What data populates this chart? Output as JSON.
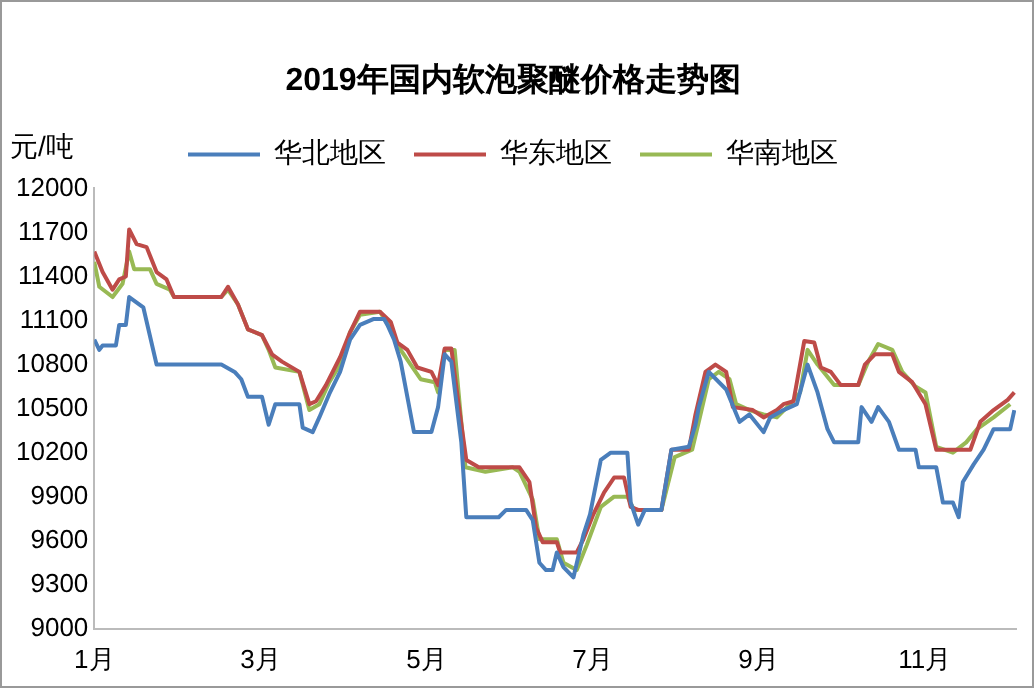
{
  "chart_data": {
    "type": "line",
    "title": "2019年国内软泡聚醚价格走势图",
    "ylabel": "元/吨",
    "xlim": [
      1,
      12.1
    ],
    "xticks": [
      {
        "value": 1,
        "label": "1月"
      },
      {
        "value": 3,
        "label": "3月"
      },
      {
        "value": 5,
        "label": "5月"
      },
      {
        "value": 7,
        "label": "7月"
      },
      {
        "value": 9,
        "label": "9月"
      },
      {
        "value": 11,
        "label": "11月"
      }
    ],
    "ylim": [
      9000,
      12000
    ],
    "yticks": [
      9000,
      9300,
      9600,
      9900,
      10200,
      10500,
      10800,
      11100,
      11400,
      11700,
      12000
    ],
    "grid": false,
    "legend": "top",
    "marker": "none",
    "line_style": "solid",
    "series": [
      {
        "name": "华北地区",
        "color": "#4a7ebb",
        "x": [
          1,
          1.06,
          1.1,
          1.26,
          1.3,
          1.38,
          1.42,
          1.59,
          1.75,
          2.53,
          2.69,
          2.77,
          2.85,
          3.02,
          3.1,
          3.18,
          3.47,
          3.51,
          3.63,
          3.71,
          3.83,
          3.96,
          4.08,
          4.2,
          4.36,
          4.49,
          4.53,
          4.61,
          4.69,
          4.77,
          4.85,
          5.06,
          5.14,
          5.22,
          5.3,
          5.42,
          5.48,
          5.87,
          5.96,
          6.2,
          6.28,
          6.36,
          6.44,
          6.52,
          6.57,
          6.65,
          6.77,
          6.89,
          6.97,
          7.1,
          7.22,
          7.42,
          7.46,
          7.55,
          7.63,
          7.83,
          7.95,
          8.16,
          8.24,
          8.28,
          8.4,
          8.61,
          8.77,
          8.89,
          9.06,
          9.14,
          9.3,
          9.46,
          9.59,
          9.71,
          9.83,
          9.91,
          10.2,
          10.24,
          10.36,
          10.44,
          10.57,
          10.69,
          10.89,
          10.93,
          11.14,
          11.22,
          11.34,
          11.41,
          11.46,
          11.59,
          11.71,
          11.83,
          12.03,
          12.08
        ],
        "values": [
          10970,
          10900,
          10930,
          10930,
          11070,
          11070,
          11260,
          11190,
          10800,
          10800,
          10750,
          10700,
          10580,
          10580,
          10390,
          10530,
          10530,
          10370,
          10340,
          10440,
          10600,
          10750,
          10970,
          11070,
          11110,
          11110,
          11070,
          10970,
          10820,
          10580,
          10340,
          10340,
          10510,
          10870,
          10820,
          10270,
          9760,
          9760,
          9810,
          9810,
          9740,
          9450,
          9400,
          9400,
          9520,
          9420,
          9350,
          9640,
          9780,
          10150,
          10200,
          10200,
          9860,
          9710,
          9810,
          9810,
          10220,
          10240,
          10390,
          10510,
          10750,
          10630,
          10410,
          10460,
          10340,
          10440,
          10490,
          10530,
          10800,
          10610,
          10360,
          10270,
          10270,
          10510,
          10410,
          10510,
          10410,
          10220,
          10220,
          10100,
          10100,
          9860,
          9860,
          9760,
          10000,
          10120,
          10220,
          10360,
          10360,
          10490
        ]
      },
      {
        "name": "华东地区",
        "color": "#be4b48",
        "x": [
          1,
          1.1,
          1.22,
          1.3,
          1.38,
          1.42,
          1.51,
          1.63,
          1.75,
          1.87,
          1.96,
          2.53,
          2.61,
          2.73,
          2.85,
          3.02,
          3.14,
          3.26,
          3.47,
          3.59,
          3.67,
          3.79,
          3.96,
          4.08,
          4.2,
          4.44,
          4.57,
          4.65,
          4.77,
          4.89,
          5.06,
          5.14,
          5.22,
          5.3,
          5.38,
          5.48,
          5.63,
          6.12,
          6.24,
          6.32,
          6.4,
          6.57,
          6.61,
          6.81,
          6.89,
          7.01,
          7.14,
          7.26,
          7.38,
          7.46,
          7.55,
          7.83,
          7.95,
          8.16,
          8.24,
          8.36,
          8.48,
          8.61,
          8.69,
          8.93,
          9.06,
          9.22,
          9.3,
          9.42,
          9.55,
          9.67,
          9.75,
          9.87,
          9.99,
          10.2,
          10.28,
          10.4,
          10.61,
          10.69,
          10.85,
          11.01,
          11.14,
          11.55,
          11.67,
          11.83,
          12.0,
          12.08
        ],
        "values": [
          11570,
          11430,
          11310,
          11380,
          11400,
          11720,
          11620,
          11600,
          11430,
          11380,
          11260,
          11260,
          11330,
          11210,
          11040,
          11000,
          10870,
          10820,
          10750,
          10530,
          10550,
          10660,
          10850,
          11020,
          11160,
          11160,
          11090,
          10950,
          10900,
          10780,
          10750,
          10660,
          10910,
          10910,
          10560,
          10150,
          10100,
          10100,
          10000,
          9690,
          9590,
          9590,
          9520,
          9520,
          9610,
          9780,
          9930,
          10030,
          10030,
          9830,
          9810,
          9810,
          10220,
          10220,
          10460,
          10750,
          10800,
          10750,
          10510,
          10490,
          10440,
          10490,
          10530,
          10550,
          10960,
          10950,
          10780,
          10750,
          10660,
          10660,
          10800,
          10870,
          10870,
          10750,
          10680,
          10530,
          10220,
          10220,
          10410,
          10490,
          10560,
          10610
        ]
      },
      {
        "name": "华南地区",
        "color": "#98b954",
        "x": [
          1,
          1.06,
          1.22,
          1.34,
          1.42,
          1.48,
          1.67,
          1.75,
          1.91,
          1.96,
          2.53,
          2.61,
          2.73,
          2.85,
          3.02,
          3.1,
          3.18,
          3.47,
          3.59,
          3.71,
          3.83,
          3.96,
          4.08,
          4.2,
          4.44,
          4.57,
          4.69,
          4.81,
          4.93,
          5.1,
          5.14,
          5.22,
          5.34,
          5.47,
          5.71,
          6.04,
          6.12,
          6.28,
          6.36,
          6.57,
          6.65,
          6.81,
          6.93,
          7.1,
          7.26,
          7.42,
          7.5,
          7.83,
          7.99,
          8.2,
          8.28,
          8.4,
          8.52,
          8.65,
          8.73,
          8.89,
          9.06,
          9.22,
          9.38,
          9.5,
          9.59,
          9.71,
          9.91,
          10.2,
          10.32,
          10.44,
          10.61,
          10.73,
          10.89,
          11.01,
          11.14,
          11.34,
          11.5,
          11.63,
          11.83,
          12.03
        ],
        "values": [
          11500,
          11330,
          11260,
          11350,
          11570,
          11450,
          11450,
          11350,
          11310,
          11260,
          11260,
          11310,
          11210,
          11040,
          11000,
          10900,
          10780,
          10750,
          10490,
          10530,
          10680,
          10800,
          11020,
          11140,
          11160,
          11040,
          10900,
          10800,
          10700,
          10680,
          10610,
          10900,
          10900,
          10100,
          10070,
          10100,
          10070,
          9880,
          9610,
          9610,
          9450,
          9400,
          9570,
          9830,
          9900,
          9900,
          9810,
          9810,
          10170,
          10220,
          10410,
          10700,
          10750,
          10700,
          10530,
          10490,
          10460,
          10440,
          10530,
          10610,
          10900,
          10800,
          10660,
          10660,
          10820,
          10940,
          10900,
          10750,
          10650,
          10610,
          10240,
          10200,
          10270,
          10360,
          10440,
          10530
        ]
      }
    ]
  }
}
